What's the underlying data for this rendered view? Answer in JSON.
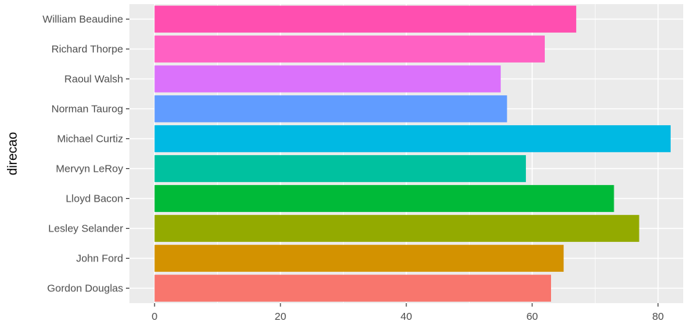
{
  "chart_data": {
    "type": "bar",
    "orientation": "horizontal",
    "categories": [
      "Gordon Douglas",
      "John Ford",
      "Lesley Selander",
      "Lloyd Bacon",
      "Mervyn LeRoy",
      "Michael Curtiz",
      "Norman Taurog",
      "Raoul Walsh",
      "Richard Thorpe",
      "William Beaudine"
    ],
    "values": [
      63,
      65,
      77,
      73,
      59,
      82,
      56,
      55,
      62,
      67
    ],
    "colors": [
      "#F8766D",
      "#D39200",
      "#93AA00",
      "#00BA38",
      "#00C19F",
      "#00B9E3",
      "#619CFF",
      "#DB72FB",
      "#FF61C3",
      "#FF4FB0"
    ],
    "title": "",
    "xlabel": "",
    "ylabel": "direcao",
    "xlim": [
      -4,
      84
    ],
    "xticks": [
      0,
      20,
      40,
      60,
      80
    ],
    "grid": true,
    "legend": "none",
    "panel_background": "#EBEBEB",
    "grid_color": "#FFFFFF"
  }
}
